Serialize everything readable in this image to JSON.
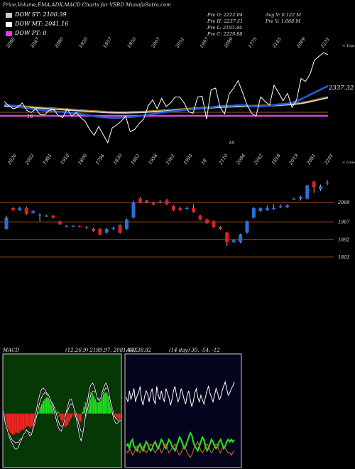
{
  "header": {
    "title": "Price,Volume,EMA,ADX,MACD Charts for VSBD MunafaSutra.com",
    "legend": [
      {
        "label": "DOW ST: 2100.39",
        "color": "#cccccc"
      },
      {
        "label": "DOW MT: 2041.16",
        "color": "#ffffff"
      },
      {
        "label": "DOW PT: 0",
        "color": "#e040e0"
      }
    ],
    "quote": {
      "o": "Pre   O: 2222.04",
      "h": "Pre   H: 2237.51",
      "l": "Pre   L: 2193.44",
      "c": "Pre   C: 2229.88",
      "av": "Avg V: 0.122  M",
      "v": "Pre   V: 1.068  M"
    }
  },
  "colors": {
    "up": "#2a6fd6",
    "down": "#e02020",
    "ema_fast": "#1e5fd8",
    "ema_mid": "#e0e0e0",
    "dow_pt": "#e040e0",
    "support": "#a0522d",
    "macd_green": "#22dd22",
    "macd_red": "#ff2020"
  },
  "chart_data": [
    {
      "type": "line",
      "name": "price-ema",
      "top_labels": [
        "2080",
        "2047",
        "2080",
        "1920",
        "1857",
        "1850",
        "2007",
        "2051",
        "1997",
        "2099",
        "1775",
        "2145",
        "2069",
        "2231"
      ],
      "top_right_label": "< Tops",
      "bottom_labels": [
        "2026",
        "2002",
        "1985",
        "1910",
        "1800",
        "1794",
        "1830",
        "1862",
        "1958",
        "1961",
        "1995",
        "18",
        "2110",
        "2094",
        "2042",
        "1818",
        "2019",
        "2081",
        "2201"
      ],
      "bottom_right_label": "< Lows",
      "mid_labels": [
        "16",
        "16"
      ],
      "last_price_label": "2337.32",
      "dow_pt_level": 0,
      "price": [
        2040,
        2010,
        1990,
        2000,
        2030,
        1980,
        1965,
        1990,
        1950,
        1950,
        1980,
        1985,
        1945,
        1930,
        1990,
        1940,
        1965,
        1930,
        1905,
        1850,
        1810,
        1870,
        1815,
        1760,
        1860,
        1880,
        1905,
        1940,
        1835,
        1850,
        1890,
        1920,
        2010,
        2050,
        1990,
        2060,
        2005,
        2030,
        2070,
        2070,
        2030,
        1970,
        1960,
        2070,
        2075,
        1920,
        2120,
        2130,
        2000,
        1955,
        2090,
        2130,
        2180,
        2100,
        2015,
        1960,
        1940,
        2070,
        2040,
        2015,
        2150,
        2100,
        2045,
        2095,
        2000,
        2050,
        2195,
        2175,
        2225,
        2320,
        2345,
        2370,
        2357
      ],
      "ema_fast": [
        2020,
        2015,
        2010,
        2005,
        2000,
        1995,
        1990,
        1985,
        1982,
        1978,
        1975,
        1973,
        1970,
        1968,
        1965,
        1962,
        1958,
        1955,
        1950,
        1945,
        1940,
        1936,
        1932,
        1930,
        1928,
        1928,
        1930,
        1932,
        1934,
        1937,
        1940,
        1945,
        1950,
        1955,
        1960,
        1965,
        1968,
        1972,
        1975,
        1978,
        1982,
        1985,
        1988,
        1990,
        1992,
        1995,
        2000,
        2005,
        2008,
        2010,
        2010,
        2012,
        2015,
        2015,
        2012,
        2008,
        2006,
        2006,
        2008,
        2010,
        2015,
        2020,
        2022,
        2025,
        2030,
        2040,
        2055,
        2070,
        2085,
        2100,
        2115,
        2130,
        2145
      ],
      "ema_mid": [
        2010,
        2009,
        2008,
        2006,
        2004,
        2002,
        2000,
        1998,
        1996,
        1994,
        1992,
        1990,
        1988,
        1986,
        1984,
        1982,
        1980,
        1978,
        1976,
        1974,
        1972,
        1970,
        1968,
        1966,
        1965,
        1964,
        1964,
        1964,
        1965,
        1966,
        1967,
        1968,
        1970,
        1972,
        1974,
        1976,
        1978,
        1980,
        1982,
        1984,
        1986,
        1988,
        1990,
        1992,
        1994,
        1996,
        1998,
        2000,
        2002,
        2004,
        2005,
        2006,
        2007,
        2008,
        2008,
        2008,
        2008,
        2009,
        2010,
        2011,
        2013,
        2015,
        2017,
        2019,
        2021,
        2024,
        2028,
        2033,
        2039,
        2046,
        2053,
        2060,
        2067
      ]
    },
    {
      "type": "candlestick",
      "name": "price-candles",
      "levels": [
        {
          "label": "2089",
          "value": 2089
        },
        {
          "label": "1987",
          "value": 1987
        },
        {
          "label": "1892",
          "value": 1892
        },
        {
          "label": "1801",
          "value": 1801
        }
      ],
      "candles": [
        {
          "o": 1950,
          "c": 2010,
          "h": 2020,
          "l": 1945
        },
        {
          "o": 2060,
          "c": 2050,
          "h": 2065,
          "l": 2045
        },
        {
          "o": 2050,
          "c": 2060,
          "h": 2068,
          "l": 2045
        },
        {
          "o": 2060,
          "c": 2030,
          "h": 2068,
          "l": 2025
        },
        {
          "o": 2035,
          "c": 2045,
          "h": 2050,
          "l": 2030
        },
        {
          "o": 2025,
          "c": 2025,
          "h": 2035,
          "l": 1990
        },
        {
          "o": 2020,
          "c": 2020,
          "h": 2025,
          "l": 2015
        },
        {
          "o": 2020,
          "c": 2010,
          "h": 2022,
          "l": 2005
        },
        {
          "o": 1990,
          "c": 1975,
          "h": 1995,
          "l": 1970
        },
        {
          "o": 1965,
          "c": 1965,
          "h": 1970,
          "l": 1960
        },
        {
          "o": 1965,
          "c": 1965,
          "h": 1970,
          "l": 1962
        },
        {
          "o": 1965,
          "c": 1960,
          "h": 1968,
          "l": 1958
        },
        {
          "o": 1960,
          "c": 1955,
          "h": 1965,
          "l": 1950
        },
        {
          "o": 1950,
          "c": 1940,
          "h": 1955,
          "l": 1935
        },
        {
          "o": 1950,
          "c": 1920,
          "h": 1955,
          "l": 1915
        },
        {
          "o": 1930,
          "c": 1950,
          "h": 1955,
          "l": 1925
        },
        {
          "o": 1950,
          "c": 1955,
          "h": 1962,
          "l": 1945
        },
        {
          "o": 1970,
          "c": 1930,
          "h": 1975,
          "l": 1925
        },
        {
          "o": 1950,
          "c": 2000,
          "h": 2005,
          "l": 1945
        },
        {
          "o": 2010,
          "c": 2090,
          "h": 2100,
          "l": 2005
        },
        {
          "o": 2110,
          "c": 2090,
          "h": 2120,
          "l": 2085
        },
        {
          "o": 2100,
          "c": 2090,
          "h": 2105,
          "l": 2085
        },
        {
          "o": 2090,
          "c": 2080,
          "h": 2095,
          "l": 2075
        },
        {
          "o": 2095,
          "c": 2090,
          "h": 2102,
          "l": 2085
        },
        {
          "o": 2100,
          "c": 2080,
          "h": 2110,
          "l": 2075
        },
        {
          "o": 2070,
          "c": 2050,
          "h": 2075,
          "l": 2045
        },
        {
          "o": 2060,
          "c": 2050,
          "h": 2068,
          "l": 2045
        },
        {
          "o": 2055,
          "c": 2060,
          "h": 2070,
          "l": 2050
        },
        {
          "o": 2060,
          "c": 2040,
          "h": 2080,
          "l": 2035
        },
        {
          "o": 2020,
          "c": 2000,
          "h": 2025,
          "l": 1995
        },
        {
          "o": 2000,
          "c": 1980,
          "h": 2005,
          "l": 1975
        },
        {
          "o": 1990,
          "c": 1960,
          "h": 1995,
          "l": 1955
        },
        {
          "o": 1960,
          "c": 1950,
          "h": 1965,
          "l": 1945
        },
        {
          "o": 1930,
          "c": 1880,
          "h": 1935,
          "l": 1860
        },
        {
          "o": 1880,
          "c": 1890,
          "h": 1895,
          "l": 1875
        },
        {
          "o": 1880,
          "c": 1920,
          "h": 1925,
          "l": 1875
        },
        {
          "o": 1930,
          "c": 1990,
          "h": 1995,
          "l": 1925
        },
        {
          "o": 2010,
          "c": 2060,
          "h": 2065,
          "l": 2005
        },
        {
          "o": 2045,
          "c": 2060,
          "h": 2065,
          "l": 2040
        },
        {
          "o": 2050,
          "c": 2060,
          "h": 2075,
          "l": 2045
        },
        {
          "o": 2060,
          "c": 2060,
          "h": 2080,
          "l": 2050
        },
        {
          "o": 2065,
          "c": 2070,
          "h": 2080,
          "l": 2060
        },
        {
          "o": 2065,
          "c": 2075,
          "h": 2080,
          "l": 2060
        },
        {
          "o": 2110,
          "c": 2110,
          "h": 2115,
          "l": 2105
        },
        {
          "o": 2110,
          "c": 2120,
          "h": 2125,
          "l": 2100
        },
        {
          "o": 2110,
          "c": 2180,
          "h": 2185,
          "l": 2105
        },
        {
          "o": 2200,
          "c": 2170,
          "h": 2205,
          "l": 2140
        },
        {
          "o": 2160,
          "c": 2175,
          "h": 2185,
          "l": 2150
        },
        {
          "o": 2190,
          "c": 2195,
          "h": 2210,
          "l": 2180
        }
      ]
    },
    {
      "type": "bar",
      "name": "macd",
      "label": "MACD",
      "params": "(12,26,9) 2189.97, 2081.44, 38.82",
      "histogram": [
        -3,
        -6,
        -9,
        -11,
        -12,
        -13,
        -13,
        -12,
        -12,
        -12,
        -11,
        -10,
        -10,
        -9,
        -8,
        -8,
        -9,
        -8,
        -6,
        -3,
        -2,
        1,
        4,
        6,
        8,
        9,
        10,
        10,
        9,
        8,
        6,
        4,
        2,
        1,
        -2,
        -4,
        -7,
        -8,
        -8,
        -7,
        -5,
        -3,
        -1,
        -2,
        -3,
        -3,
        -5,
        -5,
        1,
        4,
        7,
        10,
        12,
        13,
        13,
        11,
        9,
        7,
        7,
        8,
        10,
        12,
        13,
        13,
        11,
        8,
        4,
        1,
        -2,
        -3,
        -3,
        -4
      ],
      "macd_line": [
        2,
        -6,
        -9,
        -13,
        -16,
        -18,
        -20,
        -22,
        -22,
        -21,
        -18,
        -16,
        -13,
        -12,
        -10,
        -12,
        -14,
        -13,
        -8,
        -3,
        3,
        8,
        12,
        15,
        16,
        15,
        13,
        12,
        10,
        7,
        4,
        0,
        -4,
        -8,
        -10,
        -11,
        -8,
        -4,
        1,
        5,
        9,
        9,
        6,
        2,
        -3,
        -8,
        -14,
        -17,
        -13,
        -6,
        1,
        8,
        15,
        18,
        19,
        17,
        13,
        9,
        8,
        10,
        14,
        17,
        19,
        17,
        12,
        6,
        0,
        -4,
        -6,
        -6,
        -5,
        -4
      ],
      "signal_line": [
        -2,
        -7,
        -10,
        -12,
        -14,
        -16,
        -17,
        -18,
        -18,
        -18,
        -16,
        -15,
        -13,
        -12,
        -11,
        -11,
        -12,
        -12,
        -10,
        -6,
        -2,
        3,
        7,
        10,
        12,
        13,
        12,
        11,
        10,
        8,
        6,
        3,
        0,
        -4,
        -7,
        -8,
        -7,
        -4,
        -1,
        2,
        5,
        6,
        5,
        3,
        0,
        -4,
        -8,
        -11,
        -11,
        -7,
        -2,
        3,
        8,
        12,
        14,
        14,
        12,
        10,
        9,
        10,
        12,
        14,
        16,
        15,
        12,
        8,
        3,
        -1,
        -3,
        -4,
        -4,
        -4
      ],
      "ylim": [
        -30,
        30
      ]
    },
    {
      "type": "line",
      "name": "adx",
      "label": "ADX",
      "params": "(14 day) 30, -54, -12",
      "series": [
        {
          "name": "white",
          "color": "#ffffff",
          "values": [
            62,
            58,
            68,
            60,
            65,
            70,
            58,
            63,
            66,
            72,
            60,
            55,
            63,
            68,
            65,
            58,
            66,
            70,
            60,
            56,
            72,
            64,
            60,
            68,
            62,
            58,
            70,
            66,
            62,
            55,
            60,
            68,
            72,
            64,
            58,
            62,
            70,
            66,
            60,
            56,
            64,
            68,
            60,
            54,
            58,
            66,
            70,
            62,
            58,
            64,
            60,
            56,
            62,
            68,
            72,
            66,
            62,
            58,
            64,
            70,
            66,
            60,
            62,
            68,
            72,
            76,
            70,
            64,
            66,
            70,
            72,
            76
          ]
        },
        {
          "name": "green",
          "color": "#22dd22",
          "values": [
            18,
            20,
            16,
            22,
            24,
            18,
            16,
            14,
            18,
            20,
            16,
            14,
            18,
            22,
            20,
            16,
            14,
            16,
            20,
            22,
            18,
            16,
            20,
            24,
            22,
            18,
            16,
            20,
            24,
            22,
            18,
            16,
            14,
            18,
            22,
            26,
            24,
            20,
            16,
            18,
            22,
            26,
            30,
            28,
            22,
            18,
            16,
            14,
            18,
            22,
            26,
            24,
            18,
            14,
            16,
            20,
            24,
            22,
            18,
            16,
            18,
            22,
            24,
            20,
            16,
            18,
            22,
            24,
            22,
            24,
            22,
            24
          ]
        },
        {
          "name": "orange",
          "color": "#e07020",
          "values": [
            14,
            12,
            16,
            14,
            10,
            12,
            16,
            18,
            14,
            12,
            16,
            18,
            14,
            12,
            14,
            18,
            20,
            18,
            14,
            12,
            14,
            18,
            16,
            12,
            14,
            18,
            20,
            16,
            12,
            14,
            16,
            18,
            20,
            16,
            12,
            10,
            12,
            16,
            18,
            16,
            12,
            10,
            8,
            10,
            14,
            18,
            20,
            22,
            18,
            14,
            12,
            14,
            18,
            20,
            18,
            14,
            12,
            14,
            18,
            20,
            18,
            14,
            12,
            16,
            18,
            16,
            14,
            12,
            12,
            10,
            12,
            14
          ]
        }
      ],
      "ylim": [
        0,
        100
      ]
    }
  ]
}
